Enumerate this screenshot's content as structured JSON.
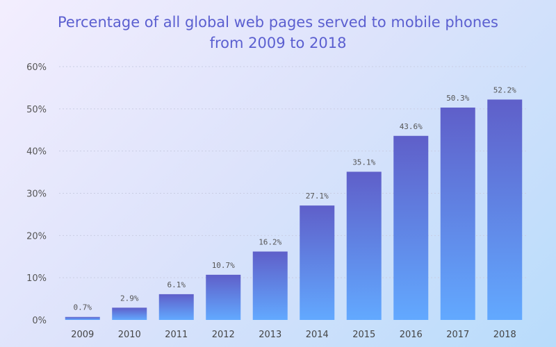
{
  "chart_data": {
    "type": "bar",
    "title_lines": [
      "Percentage of all global web pages served to mobile phones",
      "from 2009 to 2018"
    ],
    "categories": [
      "2009",
      "2010",
      "2011",
      "2012",
      "2013",
      "2014",
      "2015",
      "2016",
      "2017",
      "2018"
    ],
    "values": [
      0.7,
      2.9,
      6.1,
      10.7,
      16.2,
      27.1,
      35.1,
      43.6,
      50.3,
      52.2
    ],
    "value_labels": [
      "0.7%",
      "2.9%",
      "6.1%",
      "10.7%",
      "16.2%",
      "27.1%",
      "35.1%",
      "43.6%",
      "50.3%",
      "52.2%"
    ],
    "yticks": [
      0,
      10,
      20,
      30,
      40,
      50,
      60
    ],
    "ytick_labels": [
      "0%",
      "10%",
      "20%",
      "30%",
      "40%",
      "50%",
      "60%"
    ],
    "ylim": [
      0,
      60
    ],
    "xlabel": "",
    "ylabel": "",
    "grid": true,
    "colors": {
      "bar_top": "#5f5fc9",
      "bar_bottom": "#62a9ff",
      "grid": "#c9cde3"
    }
  }
}
